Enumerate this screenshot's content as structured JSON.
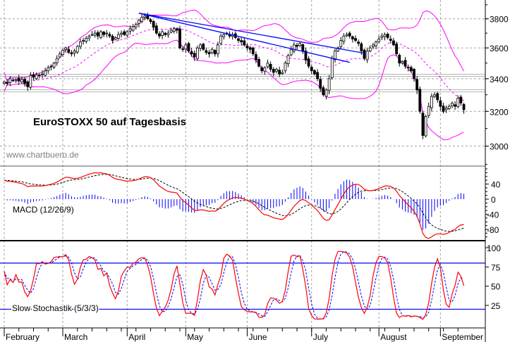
{
  "chart_data": [
    {
      "type": "candlestick",
      "title": "EuroSTOXX 50 auf Tagesbasis",
      "watermark": "www.chartbuero.de",
      "y_scale": "log",
      "ylim": [
        2880,
        3900
      ],
      "y_ticks": [
        "3000",
        "3200",
        "3400",
        "3600",
        "3800"
      ],
      "x_ticks": [
        "February",
        "March",
        "April",
        "May",
        "June",
        "July",
        "August",
        "September"
      ],
      "grid": true,
      "indicators": [
        "Bollinger Bands (20)",
        "Moving Average (20)"
      ],
      "closes": [
        3380,
        3370,
        3400,
        3390,
        3395,
        3385,
        3395,
        3370,
        3350,
        3420,
        3410,
        3425,
        3420,
        3430,
        3450,
        3470,
        3480,
        3500,
        3530,
        3560,
        3585,
        3600,
        3570,
        3560,
        3580,
        3610,
        3640,
        3650,
        3665,
        3680,
        3690,
        3700,
        3680,
        3710,
        3690,
        3700,
        3680,
        3650,
        3670,
        3690,
        3700,
        3690,
        3710,
        3730,
        3745,
        3760,
        3790,
        3810,
        3820,
        3800,
        3780,
        3740,
        3700,
        3680,
        3710,
        3690,
        3700,
        3720,
        3730,
        3720,
        3600,
        3590,
        3620,
        3580,
        3560,
        3540,
        3600,
        3620,
        3590,
        3570,
        3560,
        3590,
        3560,
        3620,
        3680,
        3690,
        3700,
        3680,
        3690,
        3670,
        3650,
        3640,
        3620,
        3600,
        3590,
        3560,
        3520,
        3480,
        3450,
        3470,
        3500,
        3460,
        3440,
        3460,
        3430,
        3440,
        3500,
        3550,
        3590,
        3620,
        3610,
        3630,
        3580,
        3520,
        3480,
        3450,
        3430,
        3400,
        3340,
        3300,
        3330,
        3400,
        3530,
        3580,
        3600,
        3650,
        3680,
        3690,
        3680,
        3660,
        3650,
        3630,
        3580,
        3530,
        3580,
        3600,
        3620,
        3640,
        3660,
        3680,
        3690,
        3670,
        3650,
        3620,
        3560,
        3500,
        3510,
        3480,
        3470,
        3450,
        3400,
        3330,
        3200,
        3060,
        3170,
        3230,
        3290,
        3300,
        3270,
        3230,
        3200,
        3220,
        3230,
        3250,
        3230,
        3280,
        3250,
        3210
      ],
      "trendlines": [
        {
          "from_price": 3840,
          "to_price": 3505,
          "from_day": 46,
          "to_day": 118
        },
        {
          "from_price": 3840,
          "to_price": 3565,
          "from_day": 46,
          "to_day": 123
        }
      ],
      "horizontal_levels": [
        3422,
        3324
      ],
      "colors": {
        "bands": "#ff00ff",
        "trendline": "#0000ff",
        "candle_down": "#000000",
        "candle_up": "#ffffff",
        "level": "#a0a0a0"
      }
    },
    {
      "type": "line",
      "title": "MACD (12/26/9)",
      "y_ticks": [
        "40",
        "0",
        "-40",
        "-80"
      ],
      "ylim": [
        -100,
        80
      ],
      "series": [
        "MACD",
        "Signal",
        "Histogram"
      ],
      "colors": {
        "macd": "#ff0000",
        "signal": "#000000",
        "histogram": "#0000ff"
      }
    },
    {
      "type": "line",
      "title": "Slow Stochastik (5/3/3)",
      "y_ticks": [
        "100",
        "75",
        "50",
        "25"
      ],
      "ylim": [
        -10,
        110
      ],
      "levels": [
        80,
        20
      ],
      "colors": {
        "k": "#ff0000",
        "d": "#0000ff",
        "levels": "#0000ff"
      }
    }
  ]
}
